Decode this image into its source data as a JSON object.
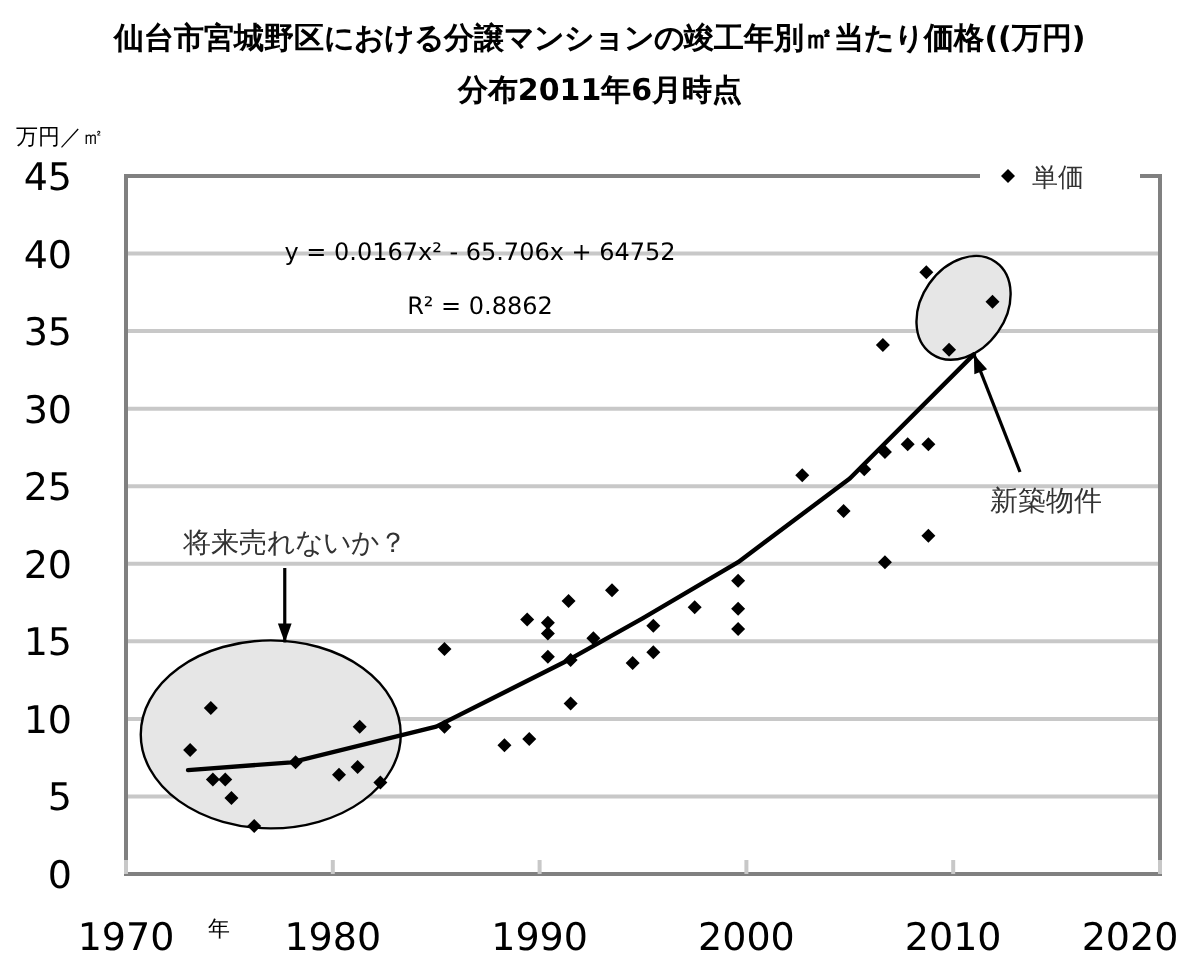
{
  "chart_data": {
    "type": "scatter",
    "title": "仙台市宮城野区における分譲マンションの竣工年別㎡当たり価格((万円)分布2011年6月時点",
    "ylabel": "万円／㎡",
    "xlabel": "年",
    "xlim": [
      1970,
      2020
    ],
    "xticks": [
      1970,
      1980,
      1990,
      2000,
      2010,
      2020
    ],
    "ylim": [
      0,
      45
    ],
    "yticks": [
      0,
      5,
      10,
      15,
      20,
      25,
      30,
      35,
      40,
      45
    ],
    "grid": "y",
    "legend": "top right",
    "annotations": [
      "y = 0.0167x² - 65.706x + 64752",
      "R² = 0.8862",
      "将来売れないか？",
      {
        "text": "新築物件",
        "x": 2011,
        "y": 33.5
      }
    ],
    "series": [
      {
        "name": "単価",
        "marker": "diamond",
        "color": "#000000",
        "x": [
          1974.1,
          1973.1,
          1974.2,
          1974.8,
          1975.1,
          1976.2,
          1978.2,
          1980.3,
          1981.2,
          1981.3,
          1982.3,
          1985.4,
          1985.4,
          1988.3,
          1989.5,
          1989.4,
          1990.4,
          1990.4,
          1991.4,
          1990.4,
          1991.5,
          1991.5,
          1992.6,
          1993.5,
          1994.5,
          1995.5,
          1995.5,
          1997.5,
          1999.6,
          1999.6,
          1999.6,
          2004.7,
          2006.7,
          2008.8,
          2008.7,
          2011.9,
          2009.8,
          2006.6,
          2002.7,
          2005.7,
          2006.7,
          2007.8,
          2008.8
        ],
        "values": [
          10.7,
          8.0,
          6.1,
          6.1,
          4.9,
          3.1,
          7.2,
          6.4,
          6.9,
          9.5,
          5.9,
          14.5,
          9.5,
          8.3,
          8.7,
          16.4,
          16.2,
          15.5,
          17.6,
          14.0,
          13.8,
          11.0,
          15.2,
          18.3,
          13.6,
          16.0,
          14.3,
          17.2,
          18.9,
          17.1,
          15.8,
          23.4,
          20.1,
          21.8,
          38.8,
          36.9,
          33.8,
          34.1,
          25.7,
          26.1,
          27.2,
          27.7,
          27.7
        ]
      },
      {
        "type": "line",
        "marker": "none",
        "color": "#000000",
        "x": [
          1973,
          1978,
          1985,
          1991.4,
          1995,
          1999.6,
          2005,
          2011
        ],
        "values": [
          6.7,
          7.2,
          9.5,
          13.8,
          16.5,
          20.1,
          25.5,
          33.5
        ]
      }
    ]
  }
}
